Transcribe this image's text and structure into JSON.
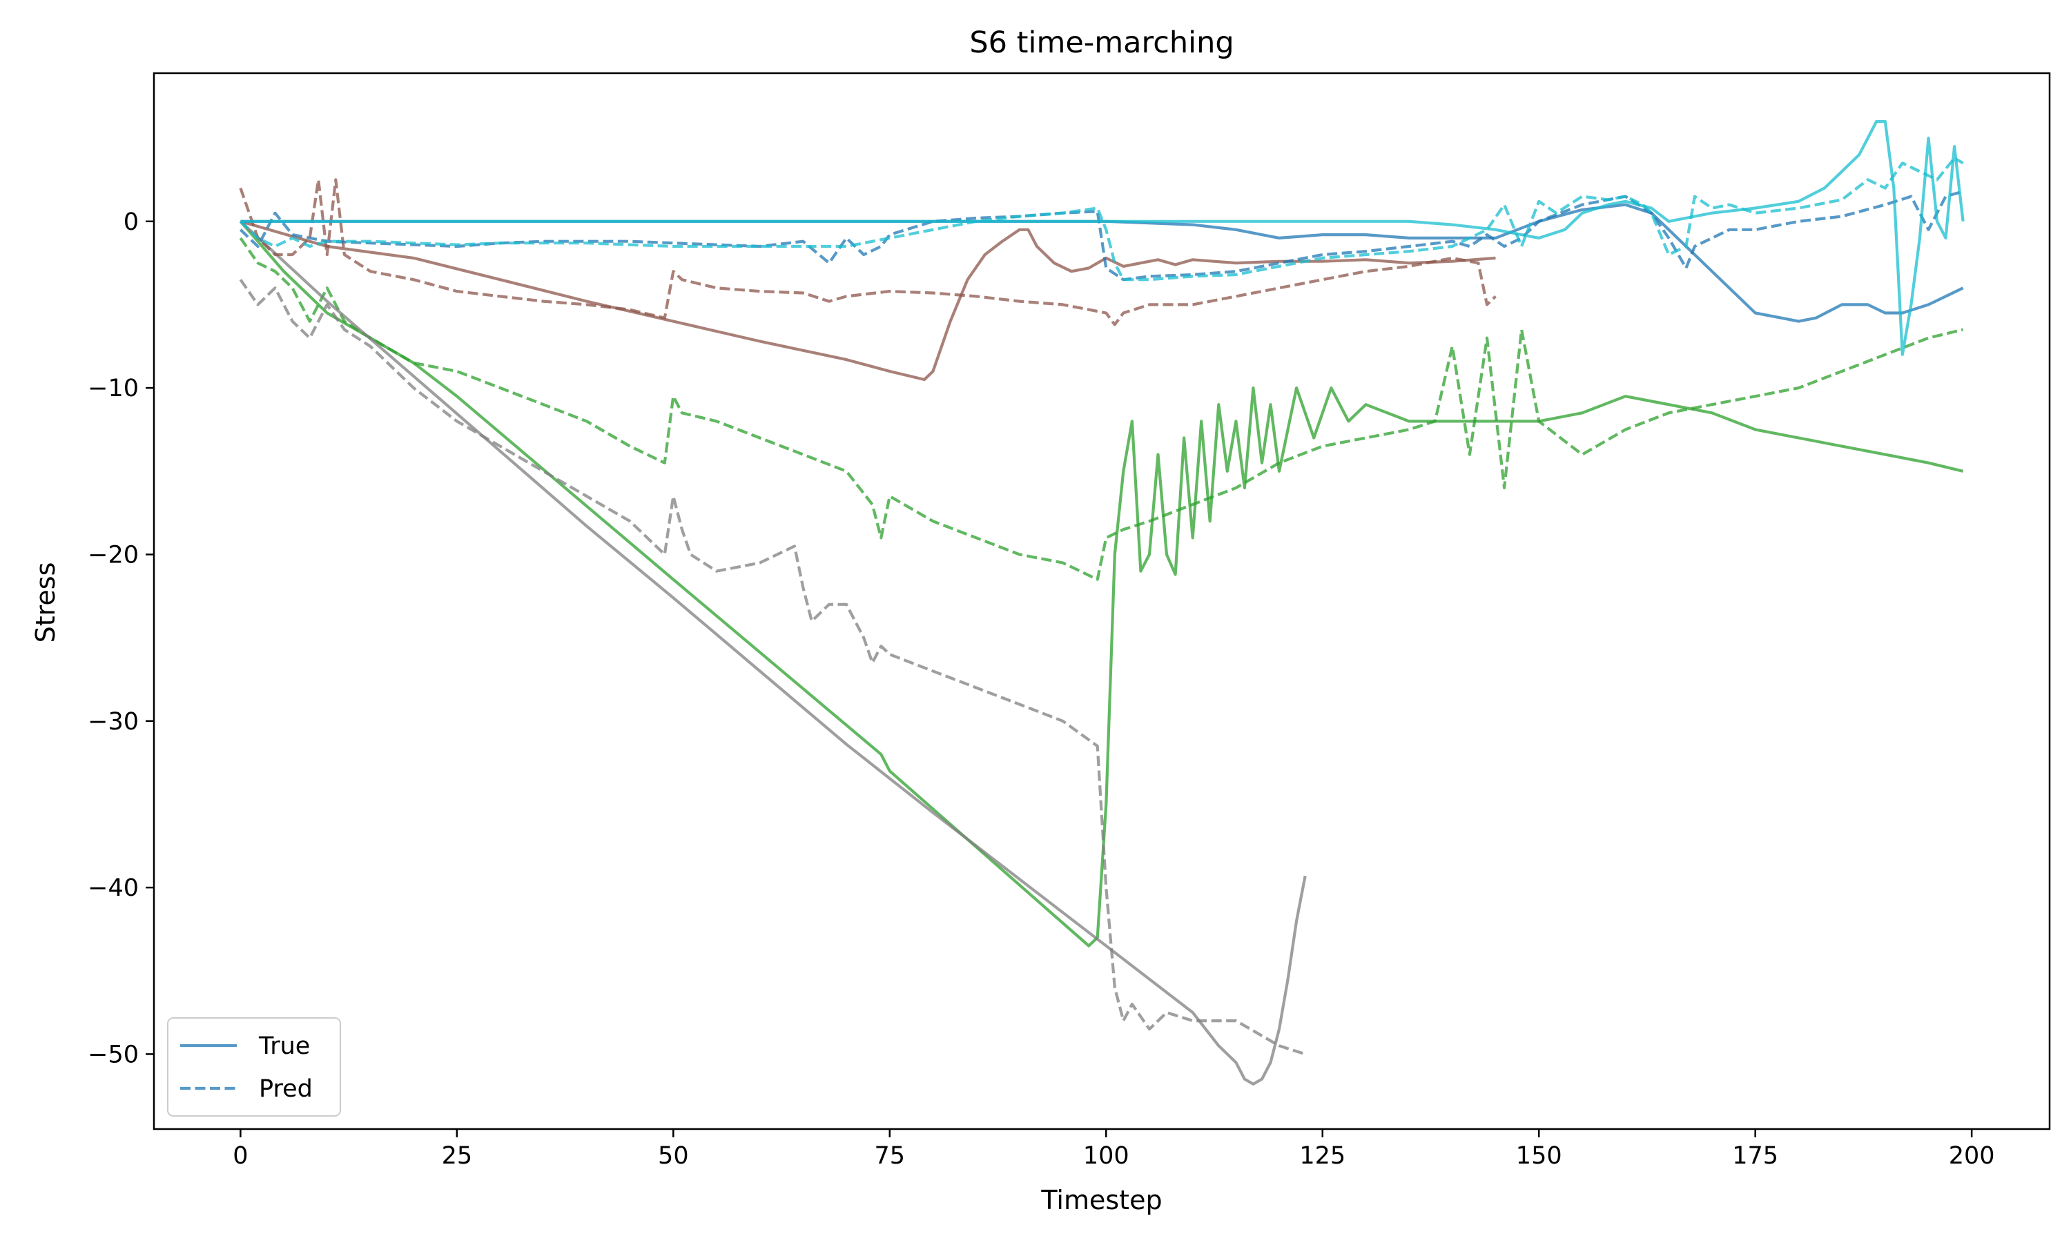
{
  "chart_data": {
    "type": "line",
    "title": "S6 time-marching",
    "xlabel": "Timestep",
    "ylabel": "Stress",
    "xlim": [
      -10,
      209
    ],
    "ylim": [
      -54.5,
      8.9
    ],
    "xticks": [
      0,
      25,
      50,
      75,
      100,
      125,
      150,
      175,
      200
    ],
    "yticks": [
      0,
      -10,
      -20,
      -30,
      -40,
      -50
    ],
    "xtick_labels": [
      "0",
      "25",
      "50",
      "75",
      "100",
      "125",
      "150",
      "175",
      "200"
    ],
    "ytick_labels": [
      "0",
      "−10",
      "−20",
      "−30",
      "−40",
      "−50"
    ],
    "grid": false,
    "legend": {
      "position": "lower-left",
      "entries": [
        {
          "label": "True",
          "style": "solid",
          "color": "#1f77b4"
        },
        {
          "label": "Pred",
          "style": "dashed",
          "color": "#1f77b4"
        }
      ]
    },
    "series": [
      {
        "color": "#2ca02c",
        "style": "solid",
        "x": [
          0,
          5,
          10,
          15,
          20,
          25,
          50,
          74,
          75,
          98,
          99,
          100,
          101,
          102,
          103,
          104,
          105,
          106,
          107,
          108,
          109,
          110,
          111,
          112,
          113,
          114,
          115,
          116,
          117,
          118,
          119,
          120,
          122,
          124,
          126,
          128,
          130,
          135,
          140,
          145,
          150,
          155,
          160,
          165,
          170,
          175,
          180,
          185,
          190,
          195,
          199
        ],
        "y": [
          0,
          -3,
          -5.5,
          -7,
          -8.5,
          -10.5,
          -21.5,
          -32,
          -33,
          -43.5,
          -43,
          -35,
          -20,
          -15,
          -12,
          -21,
          -20,
          -14,
          -20,
          -21.2,
          -13,
          -19,
          -12,
          -18,
          -11,
          -15,
          -12,
          -16,
          -10,
          -14.5,
          -11,
          -15,
          -10,
          -13,
          -10,
          -12,
          -11,
          -12,
          -12,
          -12,
          -12,
          -11.5,
          -10.5,
          -11,
          -11.5,
          -12.5,
          -13,
          -13.5,
          -14,
          -14.5,
          -15
        ]
      },
      {
        "color": "#2ca02c",
        "style": "dashed",
        "x": [
          0,
          2,
          4,
          6,
          8,
          10,
          12,
          15,
          20,
          25,
          30,
          35,
          40,
          45,
          49,
          50,
          51,
          55,
          60,
          65,
          70,
          73,
          74,
          75,
          80,
          85,
          90,
          95,
          99,
          100,
          102,
          105,
          110,
          115,
          120,
          125,
          130,
          135,
          138,
          140,
          142,
          144,
          146,
          148,
          150,
          155,
          160,
          165,
          170,
          175,
          180,
          185,
          190,
          195,
          199
        ],
        "y": [
          -1,
          -2.5,
          -3,
          -4,
          -6,
          -4,
          -6,
          -7,
          -8.5,
          -9,
          -10,
          -11,
          -12,
          -13.5,
          -14.5,
          -10.5,
          -11.5,
          -12,
          -13,
          -14,
          -15,
          -17,
          -19,
          -16.5,
          -18,
          -19,
          -20,
          -20.5,
          -21.5,
          -19,
          -18.5,
          -18,
          -17,
          -16,
          -14.5,
          -13.5,
          -13,
          -12.5,
          -12,
          -7.5,
          -14,
          -7,
          -16,
          -6.5,
          -12,
          -14,
          -12.5,
          -11.5,
          -11,
          -10.5,
          -10,
          -9,
          -8,
          -7,
          -6.5
        ]
      },
      {
        "color": "#7f7f7f",
        "style": "solid",
        "x": [
          0,
          10,
          20,
          30,
          40,
          50,
          60,
          70,
          80,
          90,
          100,
          110,
          113,
          115,
          116,
          117,
          118,
          119,
          120,
          121,
          122,
          123
        ],
        "y": [
          0,
          -4.8,
          -9.3,
          -13.8,
          -18.3,
          -22.6,
          -27,
          -31.4,
          -35.5,
          -39.5,
          -43.5,
          -47.5,
          -49.5,
          -50.5,
          -51.5,
          -51.8,
          -51.5,
          -50.5,
          -48.5,
          -45.5,
          -42,
          -39.3
        ]
      },
      {
        "color": "#7f7f7f",
        "style": "dashed",
        "x": [
          0,
          2,
          4,
          6,
          8,
          10,
          12,
          15,
          20,
          25,
          30,
          35,
          40,
          45,
          49,
          50,
          51,
          52,
          55,
          60,
          64,
          65,
          66,
          68,
          70,
          72,
          73,
          74,
          75,
          80,
          85,
          90,
          95,
          99,
          100,
          101,
          102,
          103,
          105,
          107,
          110,
          115,
          120,
          123
        ],
        "y": [
          -3.5,
          -5,
          -4,
          -6,
          -7,
          -5,
          -6.5,
          -7.5,
          -10,
          -12,
          -13.5,
          -15,
          -16.5,
          -18,
          -20,
          -16.5,
          -18.5,
          -20,
          -21,
          -20.5,
          -19.5,
          -22,
          -24,
          -23,
          -23,
          -25,
          -26.5,
          -25.5,
          -26,
          -27,
          -28,
          -29,
          -30,
          -31.5,
          -40,
          -46,
          -48,
          -47,
          -48.5,
          -47.5,
          -48,
          -48,
          -49.5,
          -50
        ]
      },
      {
        "color": "#8c564b",
        "style": "solid",
        "x": [
          0,
          10,
          20,
          30,
          40,
          50,
          60,
          70,
          75,
          79,
          80,
          82,
          84,
          86,
          88,
          90,
          91,
          92,
          94,
          96,
          98,
          100,
          102,
          104,
          106,
          108,
          110,
          115,
          120,
          125,
          130,
          135,
          140,
          145
        ],
        "y": [
          0,
          -1.5,
          -2.2,
          -3.5,
          -4.8,
          -6,
          -7.2,
          -8.3,
          -9,
          -9.5,
          -9,
          -6,
          -3.5,
          -2,
          -1.2,
          -0.5,
          -0.5,
          -1.5,
          -2.5,
          -3,
          -2.8,
          -2.2,
          -2.7,
          -2.5,
          -2.3,
          -2.6,
          -2.3,
          -2.5,
          -2.4,
          -2.4,
          -2.3,
          -2.5,
          -2.4,
          -2.2
        ]
      },
      {
        "color": "#8c564b",
        "style": "dashed",
        "x": [
          0,
          2,
          4,
          6,
          8,
          9,
          10,
          11,
          12,
          15,
          20,
          25,
          30,
          35,
          40,
          45,
          49,
          50,
          51,
          55,
          60,
          65,
          68,
          70,
          75,
          80,
          85,
          90,
          95,
          100,
          101,
          102,
          105,
          110,
          115,
          120,
          125,
          130,
          135,
          140,
          143,
          144,
          145
        ],
        "y": [
          2,
          -1,
          -2,
          -2,
          -1,
          2.5,
          -2,
          2.5,
          -2,
          -3,
          -3.5,
          -4.2,
          -4.5,
          -4.8,
          -5,
          -5.3,
          -5.8,
          -3,
          -3.5,
          -4,
          -4.2,
          -4.3,
          -4.8,
          -4.5,
          -4.2,
          -4.3,
          -4.5,
          -4.8,
          -5,
          -5.5,
          -6.2,
          -5.5,
          -5,
          -5,
          -4.5,
          -4,
          -3.5,
          -3,
          -2.7,
          -2.2,
          -2.5,
          -5,
          -4.5
        ]
      },
      {
        "color": "#1f77b4",
        "style": "solid",
        "x": [
          0,
          20,
          40,
          60,
          80,
          100,
          110,
          115,
          120,
          125,
          130,
          135,
          140,
          145,
          150,
          155,
          160,
          163,
          165,
          168,
          170,
          173,
          175,
          178,
          180,
          182,
          185,
          188,
          190,
          192,
          195,
          199
        ],
        "y": [
          0,
          0,
          0,
          0,
          0,
          0,
          -0.2,
          -0.5,
          -1,
          -0.8,
          -0.8,
          -1,
          -1,
          -1,
          0,
          0.7,
          1,
          0.5,
          -0.5,
          -2,
          -3,
          -4.5,
          -5.5,
          -5.8,
          -6,
          -5.8,
          -5,
          -5,
          -5.5,
          -5.5,
          -5,
          -4
        ]
      },
      {
        "color": "#1f77b4",
        "style": "dashed",
        "x": [
          0,
          2,
          4,
          6,
          8,
          10,
          15,
          20,
          25,
          30,
          35,
          40,
          45,
          50,
          55,
          60,
          65,
          68,
          70,
          72,
          74,
          75,
          80,
          85,
          90,
          95,
          99,
          100,
          102,
          105,
          110,
          115,
          120,
          125,
          130,
          135,
          140,
          142,
          144,
          146,
          148,
          150,
          155,
          160,
          163,
          165,
          167,
          168,
          170,
          172,
          175,
          180,
          185,
          190,
          193,
          195,
          197,
          199
        ],
        "y": [
          -0.5,
          -1.5,
          0.5,
          -0.8,
          -1,
          -1.2,
          -1.3,
          -1.4,
          -1.5,
          -1.3,
          -1.2,
          -1.2,
          -1.2,
          -1.3,
          -1.4,
          -1.5,
          -1.2,
          -2.5,
          -1,
          -2,
          -1.5,
          -0.8,
          0,
          0.2,
          0.3,
          0.5,
          0.6,
          -2.8,
          -3.5,
          -3.3,
          -3.2,
          -3,
          -2.5,
          -2,
          -1.8,
          -1.5,
          -1.2,
          -1.5,
          -0.8,
          -1.5,
          -1,
          0,
          1,
          1.5,
          0.5,
          -1,
          -2.8,
          -1.5,
          -1,
          -0.5,
          -0.5,
          0,
          0.3,
          1,
          1.5,
          -0.5,
          1.5,
          1.8
        ]
      },
      {
        "color": "#17becf",
        "style": "solid",
        "x": [
          0,
          20,
          40,
          60,
          80,
          100,
          120,
          130,
          135,
          140,
          145,
          150,
          153,
          155,
          158,
          160,
          163,
          165,
          168,
          170,
          175,
          180,
          183,
          185,
          187,
          188,
          189,
          190,
          191,
          192,
          193,
          194,
          195,
          196,
          197,
          198,
          199
        ],
        "y": [
          0,
          0,
          0,
          0,
          0,
          0,
          0,
          0,
          0,
          -0.2,
          -0.5,
          -1,
          -0.5,
          0.5,
          1,
          1.2,
          0.8,
          0,
          0.3,
          0.5,
          0.8,
          1.2,
          2,
          3,
          4,
          5,
          6,
          6,
          2,
          -8,
          -5,
          -1,
          5,
          0,
          -1,
          4.5,
          0
        ]
      },
      {
        "color": "#17becf",
        "style": "dashed",
        "x": [
          0,
          2,
          4,
          6,
          8,
          10,
          15,
          20,
          25,
          30,
          40,
          50,
          60,
          70,
          75,
          80,
          85,
          90,
          95,
          99,
          100,
          101,
          102,
          105,
          110,
          115,
          120,
          125,
          130,
          135,
          140,
          142,
          144,
          146,
          148,
          150,
          152,
          155,
          158,
          160,
          162,
          163,
          165,
          167,
          168,
          170,
          172,
          175,
          180,
          185,
          188,
          190,
          192,
          194,
          196,
          198,
          199
        ],
        "y": [
          0,
          -1,
          -1.5,
          -1,
          -1.5,
          -1.2,
          -1.2,
          -1.3,
          -1.4,
          -1.3,
          -1.3,
          -1.5,
          -1.5,
          -1.5,
          -1,
          -0.5,
          0,
          0.3,
          0.5,
          0.8,
          -0.5,
          -2.5,
          -3.5,
          -3.5,
          -3.3,
          -3.2,
          -2.7,
          -2.2,
          -2,
          -1.8,
          -1.5,
          -1,
          -0.5,
          1,
          -1.5,
          1.2,
          0.5,
          1.5,
          1.3,
          1.5,
          1,
          0.5,
          -2,
          -1.5,
          1.5,
          0.8,
          1,
          0.5,
          0.8,
          1.3,
          2.5,
          2,
          3.5,
          3,
          2.5,
          3.8,
          3.5
        ]
      }
    ]
  }
}
